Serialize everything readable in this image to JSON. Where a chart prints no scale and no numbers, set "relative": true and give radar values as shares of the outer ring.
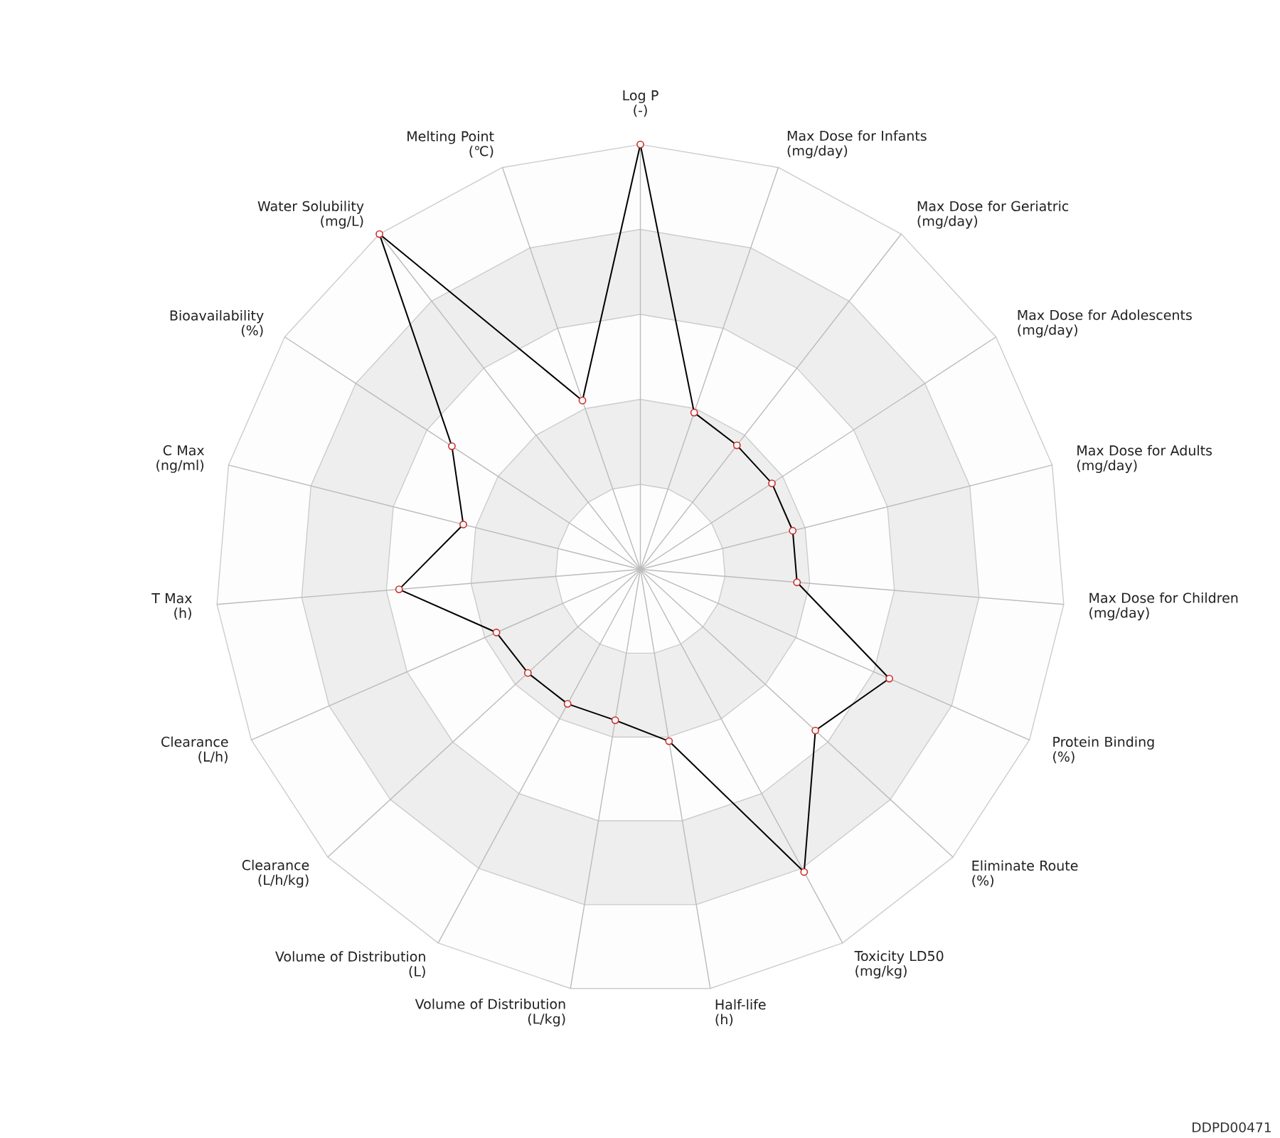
{
  "chart_data": {
    "type": "radar",
    "relative": true,
    "grid": true,
    "marker": "circle",
    "categories": [
      "Log P\n(-)",
      "Max Dose for Infants\n(mg/day)",
      "Max Dose for Geriatric\n(mg/day)",
      "Max Dose for Adolescents\n(mg/day)",
      "Max Dose for Adults\n(mg/day)",
      "Max Dose for Children\n(mg/day)",
      "Protein Binding\n(%)",
      "Eliminate Route\n(%)",
      "Toxicity LD50\n(mg/kg)",
      "Half-life\n(h)",
      "Volume of Distribution\n(L/kg)",
      "Volume of Distribution\n(L)",
      "Clearance\n(L/h/kg)",
      "Clearance\n(L/h)",
      "T Max\n(h)",
      "C Max\n(ng/ml)",
      "Bioavailability\n(%)",
      "Water Solubility\n(mg/L)",
      "Melting Point\n(℃)"
    ],
    "series": [
      {
        "color": "#000000",
        "values": [
          1.0,
          0.39,
          0.37,
          0.37,
          0.37,
          0.37,
          0.64,
          0.56,
          0.81,
          0.41,
          0.36,
          0.36,
          0.36,
          0.37,
          0.57,
          0.43,
          0.53,
          1.0,
          0.42
        ]
      }
    ],
    "annotations": [
      "DDPD00471"
    ]
  }
}
